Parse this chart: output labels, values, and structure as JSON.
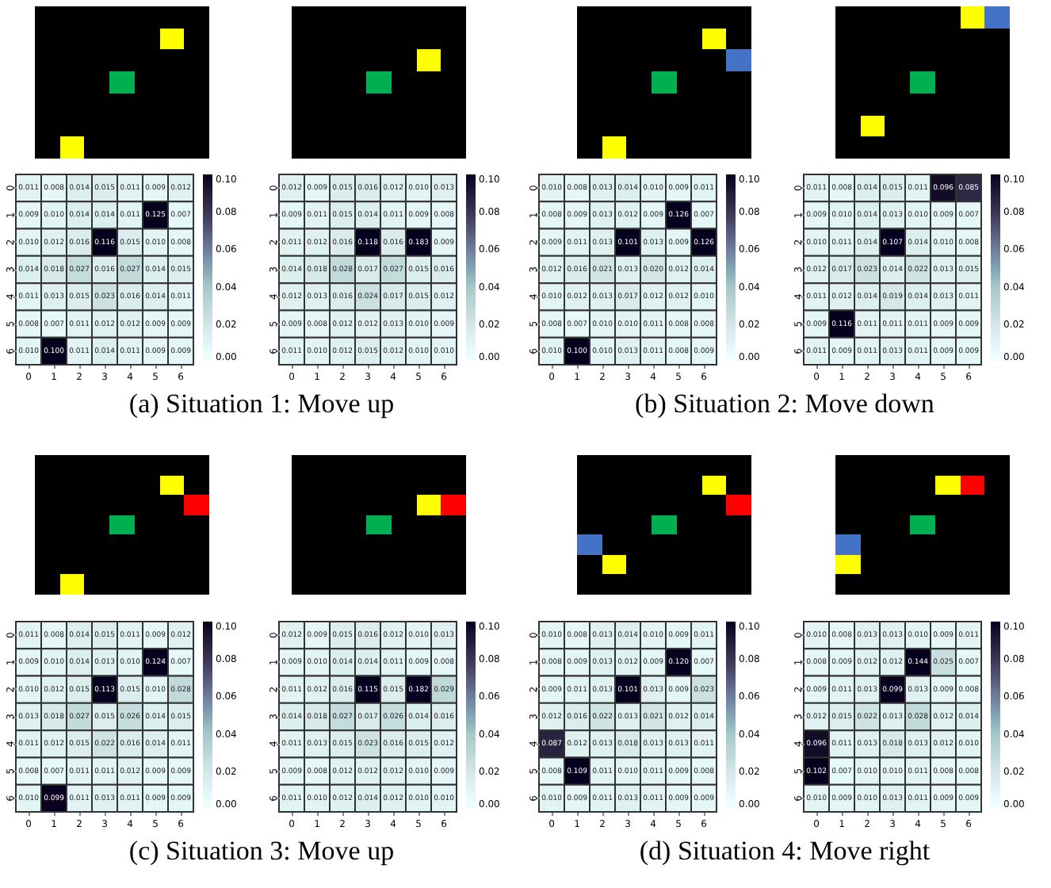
{
  "chart_data": [
    {
      "type": "heatmap",
      "categories": [
        "0",
        "1",
        "2",
        "3",
        "4",
        "5",
        "6"
      ],
      "y_categories": [
        "0",
        "1",
        "2",
        "3",
        "4",
        "5",
        "6"
      ],
      "clim": [
        0,
        0.1
      ],
      "cticks": [
        {
          "value": 0,
          "label": "0.00"
        },
        {
          "value": 0.02,
          "label": "0.02"
        },
        {
          "value": 0.04,
          "label": "0.04"
        },
        {
          "value": 0.06,
          "label": "0.06"
        },
        {
          "value": 0.08,
          "label": "0.08"
        },
        {
          "value": 0.1,
          "label": "0.10"
        }
      ],
      "data_labels": true,
      "annotations": [
        "(a) Situation 1: Move up"
      ],
      "cell_labels": [
        [
          "0.011",
          "0.008",
          "0.014",
          "0.015",
          "0.011",
          "0.009",
          "0.012"
        ],
        [
          "0.009",
          "0.010",
          "0.014",
          "0.014",
          "0.011",
          "0.125",
          "0.007"
        ],
        [
          "0.010",
          "0.012",
          "0.016",
          "0.116",
          "0.015",
          "0.010",
          "0.008"
        ],
        [
          "0.014",
          "0.018",
          "0.027",
          "0.016",
          "0.027",
          "0.014",
          "0.015"
        ],
        [
          "0.011",
          "0.013",
          "0.015",
          "0.023",
          "0.016",
          "0.014",
          "0.011"
        ],
        [
          "0.008",
          "0.007",
          "0.011",
          "0.012",
          "0.012",
          "0.009",
          "0.009"
        ],
        [
          "0.010",
          "0.100",
          "0.011",
          "0.014",
          "0.011",
          "0.009",
          "0.009"
        ]
      ],
      "cells": [
        [
          0.011,
          0.008,
          0.014,
          0.015,
          0.011,
          0.009,
          0.012
        ],
        [
          0.009,
          0.01,
          0.014,
          0.014,
          0.011,
          0.125,
          0.007
        ],
        [
          0.01,
          0.012,
          0.016,
          0.116,
          0.015,
          0.01,
          0.008
        ],
        [
          0.014,
          0.018,
          0.027,
          0.016,
          0.027,
          0.014,
          0.015
        ],
        [
          0.011,
          0.013,
          0.015,
          0.023,
          0.016,
          0.014,
          0.011
        ],
        [
          0.008,
          0.007,
          0.011,
          0.012,
          0.012,
          0.009,
          0.009
        ],
        [
          0.01,
          0.1,
          0.011,
          0.014,
          0.011,
          0.009,
          0.009
        ]
      ]
    },
    {
      "type": "heatmap",
      "categories": [
        "0",
        "1",
        "2",
        "3",
        "4",
        "5",
        "6"
      ],
      "y_categories": [
        "0",
        "1",
        "2",
        "3",
        "4",
        "5",
        "6"
      ],
      "clim": [
        0,
        0.1
      ],
      "cticks": [
        {
          "value": 0,
          "label": "0.00"
        },
        {
          "value": 0.02,
          "label": "0.02"
        },
        {
          "value": 0.04,
          "label": "0.04"
        },
        {
          "value": 0.06,
          "label": "0.06"
        },
        {
          "value": 0.08,
          "label": "0.08"
        },
        {
          "value": 0.1,
          "label": "0.10"
        }
      ],
      "data_labels": true,
      "cell_labels": [
        [
          "0.012",
          "0.009",
          "0.015",
          "0.016",
          "0.012",
          "0.010",
          "0.013"
        ],
        [
          "0.009",
          "0.011",
          "0.015",
          "0.014",
          "0.011",
          "0.009",
          "0.008"
        ],
        [
          "0.011",
          "0.012",
          "0.016",
          "0.118",
          "0.016",
          "0.183",
          "0.009"
        ],
        [
          "0.014",
          "0.018",
          "0.028",
          "0.017",
          "0.027",
          "0.015",
          "0.016"
        ],
        [
          "0.012",
          "0.013",
          "0.016",
          "0.024",
          "0.017",
          "0.015",
          "0.012"
        ],
        [
          "0.009",
          "0.008",
          "0.012",
          "0.012",
          "0.013",
          "0.010",
          "0.009"
        ],
        [
          "0.011",
          "0.010",
          "0.012",
          "0.015",
          "0.012",
          "0.010",
          "0.010"
        ]
      ],
      "cells": [
        [
          0.012,
          0.009,
          0.015,
          0.016,
          0.012,
          0.01,
          0.013
        ],
        [
          0.009,
          0.011,
          0.015,
          0.014,
          0.011,
          0.009,
          0.008
        ],
        [
          0.011,
          0.012,
          0.016,
          0.118,
          0.016,
          0.183,
          0.009
        ],
        [
          0.014,
          0.018,
          0.028,
          0.017,
          0.027,
          0.015,
          0.016
        ],
        [
          0.012,
          0.013,
          0.016,
          0.024,
          0.017,
          0.015,
          0.012
        ],
        [
          0.009,
          0.008,
          0.012,
          0.012,
          0.013,
          0.01,
          0.009
        ],
        [
          0.011,
          0.01,
          0.012,
          0.015,
          0.012,
          0.01,
          0.01
        ]
      ]
    },
    {
      "type": "heatmap",
      "categories": [
        "0",
        "1",
        "2",
        "3",
        "4",
        "5",
        "6"
      ],
      "y_categories": [
        "0",
        "1",
        "2",
        "3",
        "4",
        "5",
        "6"
      ],
      "clim": [
        0,
        0.1
      ],
      "cticks": [
        {
          "value": 0,
          "label": "0.00"
        },
        {
          "value": 0.02,
          "label": "0.02"
        },
        {
          "value": 0.04,
          "label": "0.04"
        },
        {
          "value": 0.06,
          "label": "0.06"
        },
        {
          "value": 0.08,
          "label": "0.08"
        },
        {
          "value": 0.1,
          "label": "0.10"
        }
      ],
      "data_labels": true,
      "annotations": [
        "(b) Situation 2: Move down"
      ],
      "cell_labels": [
        [
          "0.010",
          "0.008",
          "0.013",
          "0.014",
          "0.010",
          "0.009",
          "0.011"
        ],
        [
          "0.008",
          "0.009",
          "0.013",
          "0.012",
          "0.009",
          "0.126",
          "0.007"
        ],
        [
          "0.009",
          "0.011",
          "0.013",
          "0.101",
          "0.013",
          "0.009",
          "0.126"
        ],
        [
          "0.012",
          "0.016",
          "0.021",
          "0.013",
          "0.020",
          "0.012",
          "0.014"
        ],
        [
          "0.010",
          "0.012",
          "0.013",
          "0.017",
          "0.012",
          "0.012",
          "0.010"
        ],
        [
          "0.008",
          "0.007",
          "0.010",
          "0.010",
          "0.011",
          "0.008",
          "0.008"
        ],
        [
          "0.010",
          "0.100",
          "0.010",
          "0.013",
          "0.011",
          "0.008",
          "0.009"
        ]
      ],
      "cells": [
        [
          0.01,
          0.008,
          0.013,
          0.014,
          0.01,
          0.009,
          0.011
        ],
        [
          0.008,
          0.009,
          0.013,
          0.012,
          0.009,
          0.126,
          0.007
        ],
        [
          0.009,
          0.011,
          0.013,
          0.101,
          0.013,
          0.009,
          0.126
        ],
        [
          0.012,
          0.016,
          0.021,
          0.013,
          0.02,
          0.012,
          0.014
        ],
        [
          0.01,
          0.012,
          0.013,
          0.017,
          0.012,
          0.012,
          0.01
        ],
        [
          0.008,
          0.007,
          0.01,
          0.01,
          0.011,
          0.008,
          0.008
        ],
        [
          0.01,
          0.1,
          0.01,
          0.013,
          0.011,
          0.008,
          0.009
        ]
      ]
    },
    {
      "type": "heatmap",
      "categories": [
        "0",
        "1",
        "2",
        "3",
        "4",
        "5",
        "6"
      ],
      "y_categories": [
        "0",
        "1",
        "2",
        "3",
        "4",
        "5",
        "6"
      ],
      "clim": [
        0,
        0.1
      ],
      "cticks": [
        {
          "value": 0,
          "label": "0.00"
        },
        {
          "value": 0.02,
          "label": "0.02"
        },
        {
          "value": 0.04,
          "label": "0.04"
        },
        {
          "value": 0.06,
          "label": "0.06"
        },
        {
          "value": 0.08,
          "label": "0.08"
        },
        {
          "value": 0.1,
          "label": "0.10"
        }
      ],
      "data_labels": true,
      "cell_labels": [
        [
          "0.011",
          "0.008",
          "0.014",
          "0.015",
          "0.011",
          "0.096",
          "0.085"
        ],
        [
          "0.009",
          "0.010",
          "0.014",
          "0.013",
          "0.010",
          "0.009",
          "0.007"
        ],
        [
          "0.010",
          "0.011",
          "0.014",
          "0.107",
          "0.014",
          "0.010",
          "0.008"
        ],
        [
          "0.012",
          "0.017",
          "0.023",
          "0.014",
          "0.022",
          "0.013",
          "0.015"
        ],
        [
          "0.011",
          "0.012",
          "0.014",
          "0.019",
          "0.014",
          "0.013",
          "0.011"
        ],
        [
          "0.009",
          "0.116",
          "0.011",
          "0.011",
          "0.011",
          "0.009",
          "0.009"
        ],
        [
          "0.011",
          "0.009",
          "0.011",
          "0.013",
          "0.011",
          "0.009",
          "0.009"
        ]
      ],
      "cells": [
        [
          0.011,
          0.008,
          0.014,
          0.015,
          0.011,
          0.096,
          0.085
        ],
        [
          0.009,
          0.01,
          0.014,
          0.013,
          0.01,
          0.009,
          0.007
        ],
        [
          0.01,
          0.011,
          0.014,
          0.107,
          0.014,
          0.01,
          0.008
        ],
        [
          0.012,
          0.017,
          0.023,
          0.014,
          0.022,
          0.013,
          0.015
        ],
        [
          0.011,
          0.012,
          0.014,
          0.019,
          0.014,
          0.013,
          0.011
        ],
        [
          0.009,
          0.116,
          0.011,
          0.011,
          0.011,
          0.009,
          0.009
        ],
        [
          0.011,
          0.009,
          0.011,
          0.013,
          0.011,
          0.009,
          0.009
        ]
      ]
    },
    {
      "type": "heatmap",
      "categories": [
        "0",
        "1",
        "2",
        "3",
        "4",
        "5",
        "6"
      ],
      "y_categories": [
        "0",
        "1",
        "2",
        "3",
        "4",
        "5",
        "6"
      ],
      "clim": [
        0,
        0.1
      ],
      "cticks": [
        {
          "value": 0,
          "label": "0.00"
        },
        {
          "value": 0.02,
          "label": "0.02"
        },
        {
          "value": 0.04,
          "label": "0.04"
        },
        {
          "value": 0.06,
          "label": "0.06"
        },
        {
          "value": 0.08,
          "label": "0.08"
        },
        {
          "value": 0.1,
          "label": "0.10"
        }
      ],
      "data_labels": true,
      "annotations": [
        "(c) Situation 3: Move up"
      ],
      "cell_labels": [
        [
          "0.011",
          "0.008",
          "0.014",
          "0.015",
          "0.011",
          "0.009",
          "0.012"
        ],
        [
          "0.009",
          "0.010",
          "0.014",
          "0.013",
          "0.010",
          "0.124",
          "0.007"
        ],
        [
          "0.010",
          "0.012",
          "0.015",
          "0.113",
          "0.015",
          "0.010",
          "0.028"
        ],
        [
          "0.013",
          "0.018",
          "0.027",
          "0.015",
          "0.026",
          "0.014",
          "0.015"
        ],
        [
          "0.011",
          "0.012",
          "0.015",
          "0.022",
          "0.016",
          "0.014",
          "0.011"
        ],
        [
          "0.008",
          "0.007",
          "0.011",
          "0.011",
          "0.012",
          "0.009",
          "0.009"
        ],
        [
          "0.010",
          "0.099",
          "0.011",
          "0.013",
          "0.011",
          "0.009",
          "0.009"
        ]
      ],
      "cells": [
        [
          0.011,
          0.008,
          0.014,
          0.015,
          0.011,
          0.009,
          0.012
        ],
        [
          0.009,
          0.01,
          0.014,
          0.013,
          0.01,
          0.124,
          0.007
        ],
        [
          0.01,
          0.012,
          0.015,
          0.113,
          0.015,
          0.01,
          0.028
        ],
        [
          0.013,
          0.018,
          0.027,
          0.015,
          0.026,
          0.014,
          0.015
        ],
        [
          0.011,
          0.012,
          0.015,
          0.022,
          0.016,
          0.014,
          0.011
        ],
        [
          0.008,
          0.007,
          0.011,
          0.011,
          0.012,
          0.009,
          0.009
        ],
        [
          0.01,
          0.099,
          0.011,
          0.013,
          0.011,
          0.009,
          0.009
        ]
      ]
    },
    {
      "type": "heatmap",
      "categories": [
        "0",
        "1",
        "2",
        "3",
        "4",
        "5",
        "6"
      ],
      "y_categories": [
        "0",
        "1",
        "2",
        "3",
        "4",
        "5",
        "6"
      ],
      "clim": [
        0,
        0.1
      ],
      "cticks": [
        {
          "value": 0,
          "label": "0.00"
        },
        {
          "value": 0.02,
          "label": "0.02"
        },
        {
          "value": 0.04,
          "label": "0.04"
        },
        {
          "value": 0.06,
          "label": "0.06"
        },
        {
          "value": 0.08,
          "label": "0.08"
        },
        {
          "value": 0.1,
          "label": "0.10"
        }
      ],
      "data_labels": true,
      "cell_labels": [
        [
          "0.012",
          "0.009",
          "0.015",
          "0.016",
          "0.012",
          "0.010",
          "0.013"
        ],
        [
          "0.009",
          "0.010",
          "0.014",
          "0.014",
          "0.011",
          "0.009",
          "0.008"
        ],
        [
          "0.011",
          "0.012",
          "0.016",
          "0.115",
          "0.015",
          "0.182",
          "0.029"
        ],
        [
          "0.014",
          "0.018",
          "0.027",
          "0.017",
          "0.026",
          "0.014",
          "0.016"
        ],
        [
          "0.011",
          "0.013",
          "0.015",
          "0.023",
          "0.016",
          "0.015",
          "0.012"
        ],
        [
          "0.009",
          "0.008",
          "0.012",
          "0.012",
          "0.012",
          "0.010",
          "0.009"
        ],
        [
          "0.011",
          "0.010",
          "0.012",
          "0.014",
          "0.012",
          "0.010",
          "0.010"
        ]
      ],
      "cells": [
        [
          0.012,
          0.009,
          0.015,
          0.016,
          0.012,
          0.01,
          0.013
        ],
        [
          0.009,
          0.01,
          0.014,
          0.014,
          0.011,
          0.009,
          0.008
        ],
        [
          0.011,
          0.012,
          0.016,
          0.115,
          0.015,
          0.182,
          0.029
        ],
        [
          0.014,
          0.018,
          0.027,
          0.017,
          0.026,
          0.014,
          0.016
        ],
        [
          0.011,
          0.013,
          0.015,
          0.023,
          0.016,
          0.015,
          0.012
        ],
        [
          0.009,
          0.008,
          0.012,
          0.012,
          0.012,
          0.01,
          0.009
        ],
        [
          0.011,
          0.01,
          0.012,
          0.014,
          0.012,
          0.01,
          0.01
        ]
      ]
    },
    {
      "type": "heatmap",
      "categories": [
        "0",
        "1",
        "2",
        "3",
        "4",
        "5",
        "6"
      ],
      "y_categories": [
        "0",
        "1",
        "2",
        "3",
        "4",
        "5",
        "6"
      ],
      "clim": [
        0,
        0.1
      ],
      "cticks": [
        {
          "value": 0,
          "label": "0.00"
        },
        {
          "value": 0.02,
          "label": "0.02"
        },
        {
          "value": 0.04,
          "label": "0.04"
        },
        {
          "value": 0.06,
          "label": "0.06"
        },
        {
          "value": 0.08,
          "label": "0.08"
        },
        {
          "value": 0.1,
          "label": "0.10"
        }
      ],
      "data_labels": true,
      "annotations": [
        "(d) Situation 4: Move right"
      ],
      "cell_labels": [
        [
          "0.010",
          "0.008",
          "0.013",
          "0.014",
          "0.010",
          "0.009",
          "0.011"
        ],
        [
          "0.008",
          "0.009",
          "0.013",
          "0.012",
          "0.009",
          "0.120",
          "0.007"
        ],
        [
          "0.009",
          "0.011",
          "0.013",
          "0.101",
          "0.013",
          "0.009",
          "0.023"
        ],
        [
          "0.012",
          "0.016",
          "0.022",
          "0.013",
          "0.021",
          "0.012",
          "0.014"
        ],
        [
          "0.087",
          "0.012",
          "0.013",
          "0.018",
          "0.013",
          "0.013",
          "0.011"
        ],
        [
          "0.008",
          "0.109",
          "0.011",
          "0.010",
          "0.011",
          "0.009",
          "0.008"
        ],
        [
          "0.010",
          "0.009",
          "0.011",
          "0.013",
          "0.011",
          "0.009",
          "0.009"
        ]
      ],
      "cells": [
        [
          0.01,
          0.008,
          0.013,
          0.014,
          0.01,
          0.009,
          0.011
        ],
        [
          0.008,
          0.009,
          0.013,
          0.012,
          0.009,
          0.12,
          0.007
        ],
        [
          0.009,
          0.011,
          0.013,
          0.101,
          0.013,
          0.009,
          0.023
        ],
        [
          0.012,
          0.016,
          0.022,
          0.013,
          0.021,
          0.012,
          0.014
        ],
        [
          0.087,
          0.012,
          0.013,
          0.018,
          0.013,
          0.013,
          0.011
        ],
        [
          0.008,
          0.109,
          0.011,
          0.01,
          0.011,
          0.009,
          0.008
        ],
        [
          0.01,
          0.009,
          0.011,
          0.013,
          0.011,
          0.009,
          0.009
        ]
      ]
    },
    {
      "type": "heatmap",
      "categories": [
        "0",
        "1",
        "2",
        "3",
        "4",
        "5",
        "6"
      ],
      "y_categories": [
        "0",
        "1",
        "2",
        "3",
        "4",
        "5",
        "6"
      ],
      "clim": [
        0,
        0.1
      ],
      "cticks": [
        {
          "value": 0,
          "label": "0.00"
        },
        {
          "value": 0.02,
          "label": "0.02"
        },
        {
          "value": 0.04,
          "label": "0.04"
        },
        {
          "value": 0.06,
          "label": "0.06"
        },
        {
          "value": 0.08,
          "label": "0.08"
        },
        {
          "value": 0.1,
          "label": "0.10"
        }
      ],
      "data_labels": true,
      "cell_labels": [
        [
          "0.010",
          "0.008",
          "0.013",
          "0.013",
          "0.010",
          "0.009",
          "0.011"
        ],
        [
          "0.008",
          "0.009",
          "0.012",
          "0.012",
          "0.144",
          "0.025",
          "0.007"
        ],
        [
          "0.009",
          "0.011",
          "0.013",
          "0.099",
          "0.013",
          "0.009",
          "0.008"
        ],
        [
          "0.012",
          "0.015",
          "0.022",
          "0.013",
          "0.028",
          "0.012",
          "0.014"
        ],
        [
          "0.096",
          "0.011",
          "0.013",
          "0.018",
          "0.013",
          "0.012",
          "0.010"
        ],
        [
          "0.102",
          "0.007",
          "0.010",
          "0.010",
          "0.011",
          "0.008",
          "0.008"
        ],
        [
          "0.010",
          "0.009",
          "0.010",
          "0.013",
          "0.011",
          "0.009",
          "0.009"
        ]
      ],
      "cells": [
        [
          0.01,
          0.008,
          0.013,
          0.013,
          0.01,
          0.009,
          0.011
        ],
        [
          0.008,
          0.009,
          0.012,
          0.012,
          0.144,
          0.025,
          0.007
        ],
        [
          0.009,
          0.011,
          0.013,
          0.099,
          0.013,
          0.009,
          0.008
        ],
        [
          0.012,
          0.015,
          0.022,
          0.013,
          0.028,
          0.012,
          0.014
        ],
        [
          0.096,
          0.011,
          0.013,
          0.018,
          0.013,
          0.012,
          0.01
        ],
        [
          0.102,
          0.007,
          0.01,
          0.01,
          0.011,
          0.008,
          0.008
        ],
        [
          0.01,
          0.009,
          0.01,
          0.013,
          0.011,
          0.009,
          0.009
        ]
      ]
    }
  ]
}
